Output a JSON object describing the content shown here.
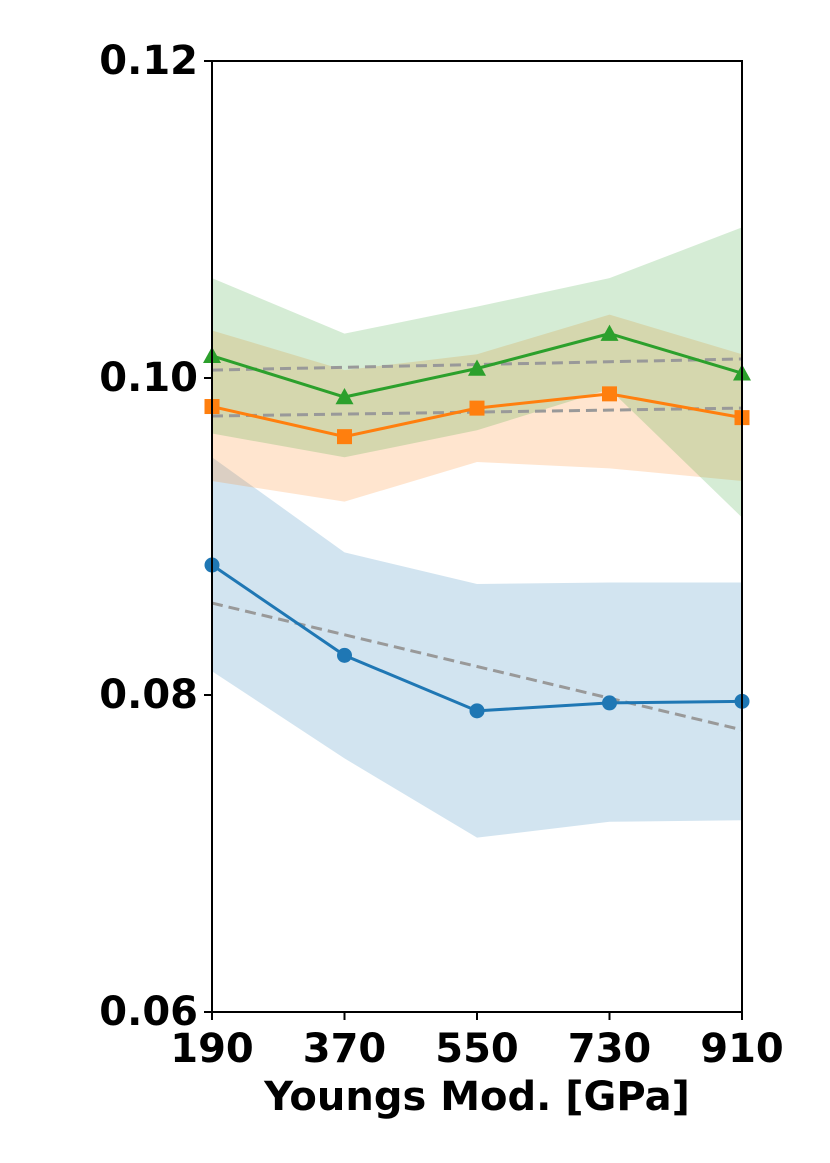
{
  "chart_data": {
    "type": "line",
    "title": "",
    "xlabel": "Youngs Mod. [GPa]",
    "ylabel": "",
    "categories": [
      "190",
      "370",
      "550",
      "730",
      "910"
    ],
    "x": [
      190,
      370,
      550,
      730,
      910
    ],
    "xlim": [
      190,
      910
    ],
    "ylim": [
      0.06,
      0.12
    ],
    "yticks": [
      "0.06",
      "0.08",
      "0.10",
      "0.12"
    ],
    "grid": false,
    "legend": "none",
    "series": [
      {
        "marker": "circle",
        "color": "#1f77b4",
        "values": [
          0.0882,
          0.0825,
          0.079,
          0.0795,
          0.0796
        ],
        "band_upper": [
          0.095,
          0.089,
          0.087,
          0.0871,
          0.0871
        ],
        "band_lower": [
          0.0815,
          0.076,
          0.071,
          0.072,
          0.0721
        ],
        "trend": [
          0.0858,
          0.0778
        ]
      },
      {
        "marker": "square",
        "color": "#ff7f0e",
        "values": [
          0.0982,
          0.0963,
          0.0981,
          0.099,
          0.0975
        ],
        "band_upper": [
          0.103,
          0.1005,
          0.1015,
          0.104,
          0.1015
        ],
        "band_lower": [
          0.0935,
          0.0922,
          0.0947,
          0.0943,
          0.0935
        ],
        "trend": [
          0.0976,
          0.0981
        ]
      },
      {
        "marker": "triangle",
        "color": "#2ca02c",
        "values": [
          0.1014,
          0.0988,
          0.1006,
          0.1028,
          0.1003
        ],
        "band_upper": [
          0.1063,
          0.1028,
          0.1045,
          0.1063,
          0.1095
        ],
        "band_lower": [
          0.0965,
          0.095,
          0.0967,
          0.0993,
          0.0912
        ],
        "trend": [
          0.1005,
          0.1012
        ]
      }
    ]
  }
}
